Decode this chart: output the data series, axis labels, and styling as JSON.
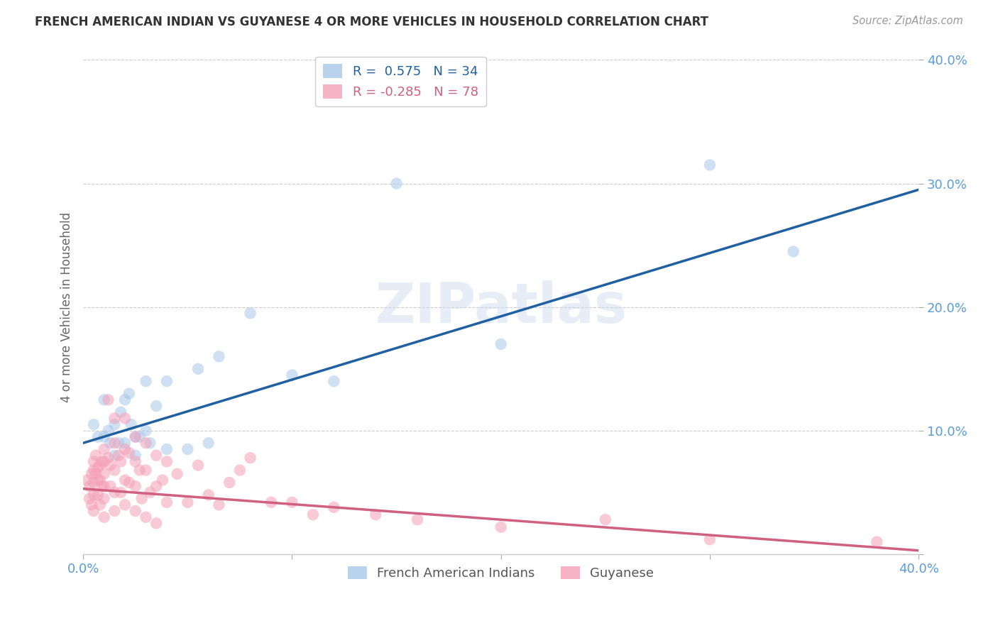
{
  "title": "FRENCH AMERICAN INDIAN VS GUYANESE 4 OR MORE VEHICLES IN HOUSEHOLD CORRELATION CHART",
  "source": "Source: ZipAtlas.com",
  "ylabel": "4 or more Vehicles in Household",
  "xlim": [
    0.0,
    0.4
  ],
  "ylim": [
    0.0,
    0.4
  ],
  "legend_blue_r": "0.575",
  "legend_blue_n": "34",
  "legend_pink_r": "-0.285",
  "legend_pink_n": "78",
  "legend_label_blue": "French American Indians",
  "legend_label_pink": "Guyanese",
  "blue_color": "#a8c8e8",
  "pink_color": "#f4a0b8",
  "line_blue_color": "#2060a0",
  "line_pink_color": "#d06080",
  "watermark": "ZIPatlas",
  "blue_line_x0": 0.0,
  "blue_line_y0": 0.09,
  "blue_line_x1": 0.4,
  "blue_line_y1": 0.295,
  "pink_line_x0": 0.0,
  "pink_line_y0": 0.053,
  "pink_line_x1": 0.4,
  "pink_line_y1": 0.003,
  "blue_points_x": [
    0.005,
    0.007,
    0.01,
    0.01,
    0.012,
    0.013,
    0.015,
    0.015,
    0.017,
    0.018,
    0.02,
    0.02,
    0.022,
    0.023,
    0.025,
    0.025,
    0.027,
    0.03,
    0.03,
    0.032,
    0.035,
    0.04,
    0.04,
    0.05,
    0.055,
    0.06,
    0.065,
    0.08,
    0.1,
    0.12,
    0.15,
    0.2,
    0.3,
    0.34
  ],
  "blue_points_y": [
    0.105,
    0.095,
    0.125,
    0.095,
    0.1,
    0.09,
    0.105,
    0.08,
    0.09,
    0.115,
    0.125,
    0.09,
    0.13,
    0.105,
    0.095,
    0.08,
    0.095,
    0.14,
    0.1,
    0.09,
    0.12,
    0.14,
    0.085,
    0.085,
    0.15,
    0.09,
    0.16,
    0.195,
    0.145,
    0.14,
    0.3,
    0.17,
    0.315,
    0.245
  ],
  "pink_points_x": [
    0.002,
    0.003,
    0.003,
    0.004,
    0.004,
    0.005,
    0.005,
    0.005,
    0.005,
    0.005,
    0.006,
    0.006,
    0.007,
    0.007,
    0.007,
    0.008,
    0.008,
    0.008,
    0.009,
    0.009,
    0.01,
    0.01,
    0.01,
    0.01,
    0.01,
    0.01,
    0.012,
    0.012,
    0.013,
    0.013,
    0.015,
    0.015,
    0.015,
    0.015,
    0.015,
    0.017,
    0.018,
    0.018,
    0.02,
    0.02,
    0.02,
    0.02,
    0.022,
    0.022,
    0.025,
    0.025,
    0.025,
    0.025,
    0.027,
    0.028,
    0.03,
    0.03,
    0.03,
    0.032,
    0.035,
    0.035,
    0.035,
    0.038,
    0.04,
    0.04,
    0.045,
    0.05,
    0.055,
    0.06,
    0.065,
    0.07,
    0.075,
    0.08,
    0.09,
    0.1,
    0.11,
    0.12,
    0.14,
    0.16,
    0.2,
    0.25,
    0.3,
    0.38
  ],
  "pink_points_y": [
    0.06,
    0.055,
    0.045,
    0.065,
    0.04,
    0.075,
    0.068,
    0.058,
    0.048,
    0.035,
    0.08,
    0.065,
    0.07,
    0.06,
    0.048,
    0.072,
    0.06,
    0.04,
    0.075,
    0.055,
    0.085,
    0.075,
    0.065,
    0.055,
    0.045,
    0.03,
    0.125,
    0.078,
    0.072,
    0.055,
    0.11,
    0.09,
    0.068,
    0.05,
    0.035,
    0.08,
    0.075,
    0.05,
    0.11,
    0.085,
    0.06,
    0.04,
    0.082,
    0.058,
    0.095,
    0.075,
    0.055,
    0.035,
    0.068,
    0.045,
    0.09,
    0.068,
    0.03,
    0.05,
    0.08,
    0.055,
    0.025,
    0.06,
    0.075,
    0.042,
    0.065,
    0.042,
    0.072,
    0.048,
    0.04,
    0.058,
    0.068,
    0.078,
    0.042,
    0.042,
    0.032,
    0.038,
    0.032,
    0.028,
    0.022,
    0.028,
    0.012,
    0.01
  ]
}
